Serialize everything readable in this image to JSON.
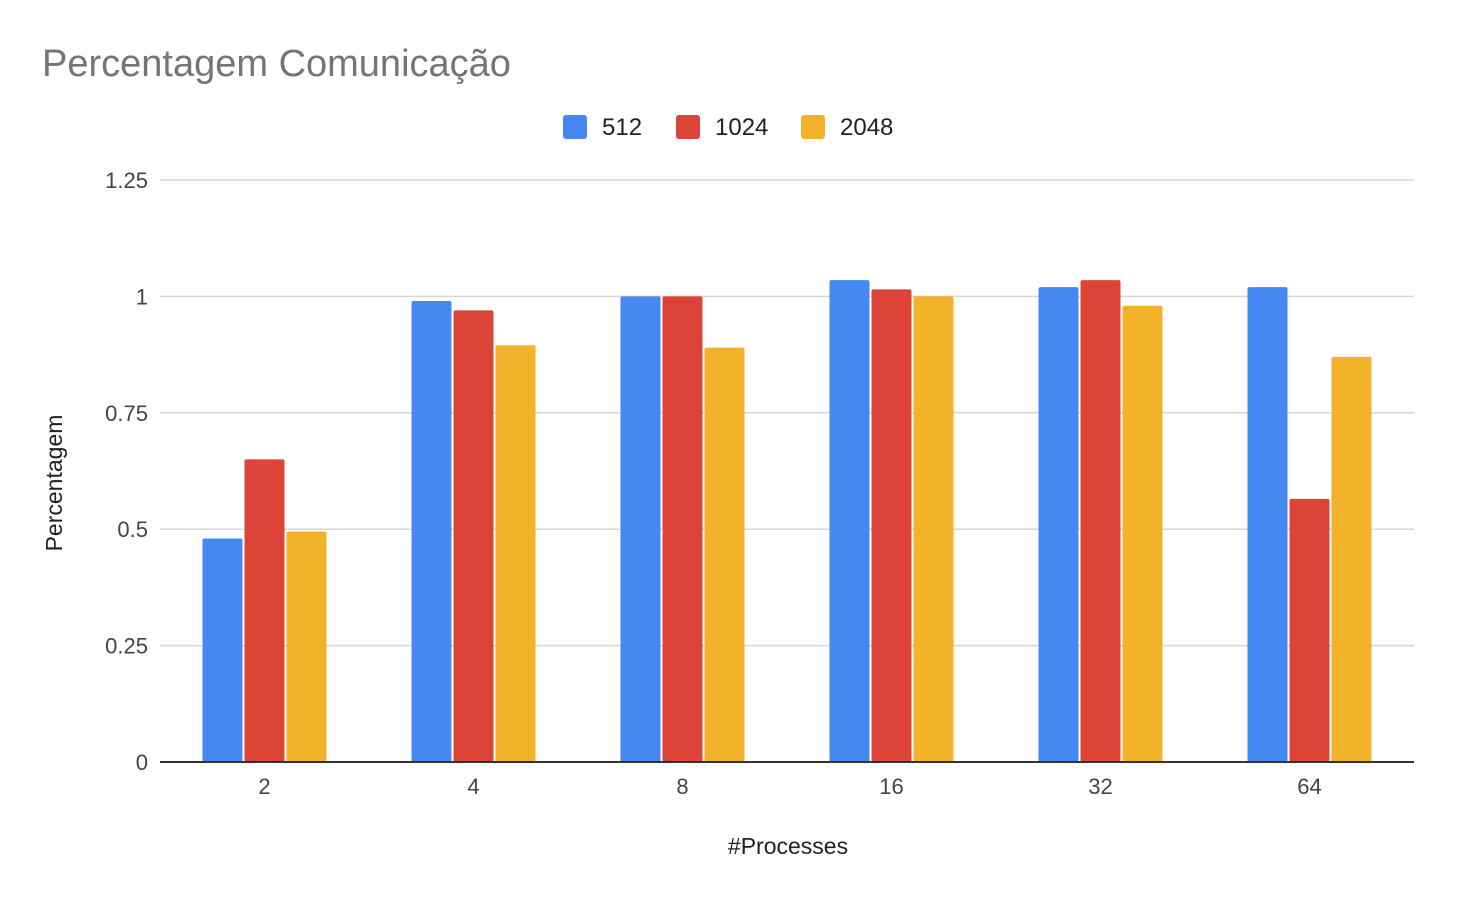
{
  "chart_data": {
    "type": "bar",
    "title": "Percentagem Comunicação",
    "xlabel": "#Processes",
    "ylabel": "Percentagem",
    "categories": [
      "2",
      "4",
      "8",
      "16",
      "32",
      "64"
    ],
    "series": [
      {
        "name": "512",
        "color": "#4688F1",
        "values": [
          0.48,
          0.99,
          1.0,
          1.035,
          1.02,
          1.02
        ]
      },
      {
        "name": "1024",
        "color": "#DB4437",
        "values": [
          0.65,
          0.97,
          1.0,
          1.015,
          1.035,
          0.565
        ]
      },
      {
        "name": "2048",
        "color": "#F2B32A",
        "values": [
          0.495,
          0.895,
          0.89,
          1.0,
          0.98,
          0.87
        ]
      }
    ],
    "ylim": [
      0,
      1.25
    ],
    "yticks": [
      "0",
      "0.25",
      "0.5",
      "0.75",
      "1",
      "1.25"
    ],
    "ytick_values": [
      0,
      0.25,
      0.5,
      0.75,
      1,
      1.25
    ],
    "grid": true,
    "legend": "top-center"
  }
}
